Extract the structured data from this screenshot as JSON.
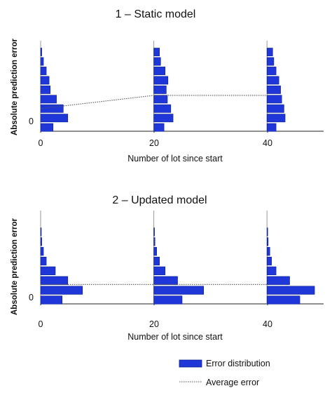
{
  "chart_data": [
    {
      "type": "bar",
      "title": "1 – Static  model",
      "xlabel": "Number of lot since start",
      "ylabel": "Absolute prediction error",
      "x_ticks": [
        "0",
        "20",
        "40"
      ],
      "x_tick_values": [
        0,
        20,
        40
      ],
      "y_ticks": [
        "0"
      ],
      "y_tick_values": [
        0
      ],
      "xlim": [
        0,
        50
      ],
      "ylim": [
        -0.4,
        9.2
      ],
      "grid": false,
      "histograms": [
        {
          "x": 0,
          "bins": [
            0,
            1,
            2,
            3,
            4,
            5,
            6,
            7,
            8
          ],
          "counts": [
            2.2,
            4.8,
            4.0,
            2.8,
            1.7,
            1.5,
            1.0,
            0.5,
            0.2
          ]
        },
        {
          "x": 20,
          "bins": [
            0,
            1,
            2,
            3,
            4,
            5,
            6,
            7,
            8
          ],
          "counts": [
            1.8,
            3.4,
            3.0,
            2.4,
            2.2,
            2.5,
            2.0,
            1.2,
            1.0
          ]
        },
        {
          "x": 40,
          "bins": [
            0,
            1,
            2,
            3,
            4,
            5,
            6,
            7,
            8
          ],
          "counts": [
            1.6,
            3.2,
            3.0,
            2.6,
            2.4,
            2.1,
            1.6,
            1.2,
            1.0
          ]
        }
      ],
      "average_error": {
        "x": [
          0,
          20,
          40
        ],
        "y": [
          2.0,
          3.4,
          3.4
        ]
      }
    },
    {
      "type": "bar",
      "title": "2 –  Updated  model",
      "xlabel": "Number of lot since start",
      "ylabel": "Absolute prediction error",
      "x_ticks": [
        "0",
        "20",
        "40"
      ],
      "x_tick_values": [
        0,
        20,
        40
      ],
      "y_ticks": [
        "0"
      ],
      "y_tick_values": [
        0
      ],
      "xlim": [
        0,
        50
      ],
      "ylim": [
        -0.4,
        9.2
      ],
      "grid": false,
      "histograms": [
        {
          "x": 0,
          "bins": [
            0,
            1,
            2,
            3,
            4,
            5,
            6,
            7,
            8
          ],
          "counts": [
            3.8,
            7.4,
            4.8,
            2.6,
            1.0,
            0.5,
            0.2,
            0.1,
            0.0
          ]
        },
        {
          "x": 20,
          "bins": [
            0,
            1,
            2,
            3,
            4,
            5,
            6,
            7,
            8
          ],
          "counts": [
            5.0,
            8.8,
            4.2,
            2.0,
            1.0,
            0.5,
            0.2,
            0.1,
            0.0
          ]
        },
        {
          "x": 40,
          "bins": [
            0,
            1,
            2,
            3,
            4,
            5,
            6,
            7,
            8
          ],
          "counts": [
            5.8,
            8.4,
            4.0,
            1.6,
            0.8,
            0.5,
            0.2,
            0.1,
            0.0
          ]
        }
      ],
      "average_error": {
        "x": [
          0,
          20,
          40
        ],
        "y": [
          1.6,
          1.6,
          1.6
        ]
      }
    }
  ],
  "legend": {
    "placement": "bottom-right",
    "items": [
      {
        "label": "Error distribution",
        "kind": "bar",
        "color": "#1f37d9"
      },
      {
        "label": "Average error",
        "kind": "dotted-line",
        "color": "#555555"
      }
    ]
  },
  "colors": {
    "bar_fill": "#1f37d9",
    "bar_edge": "#0b1f8c",
    "axis": "#222222",
    "avg_line": "#555555"
  }
}
